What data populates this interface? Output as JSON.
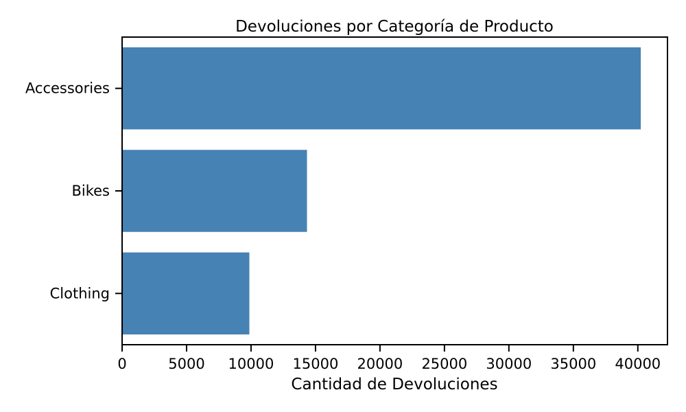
{
  "chart_data": {
    "type": "bar",
    "orientation": "horizontal",
    "title": "Devoluciones por Categoría de Producto",
    "xlabel": "Cantidad de Devoluciones",
    "ylabel": "",
    "categories": [
      "Accessories",
      "Bikes",
      "Clothing"
    ],
    "values": [
      40230,
      14340,
      9870
    ],
    "xlim": [
      0,
      42300
    ],
    "xticks": [
      0,
      5000,
      10000,
      15000,
      20000,
      25000,
      30000,
      35000,
      40000
    ],
    "xtick_labels": [
      "0",
      "5000",
      "10000",
      "15000",
      "20000",
      "25000",
      "30000",
      "35000",
      "40000"
    ],
    "grid": false,
    "legend": "none",
    "bar_color": "#4682b4"
  }
}
